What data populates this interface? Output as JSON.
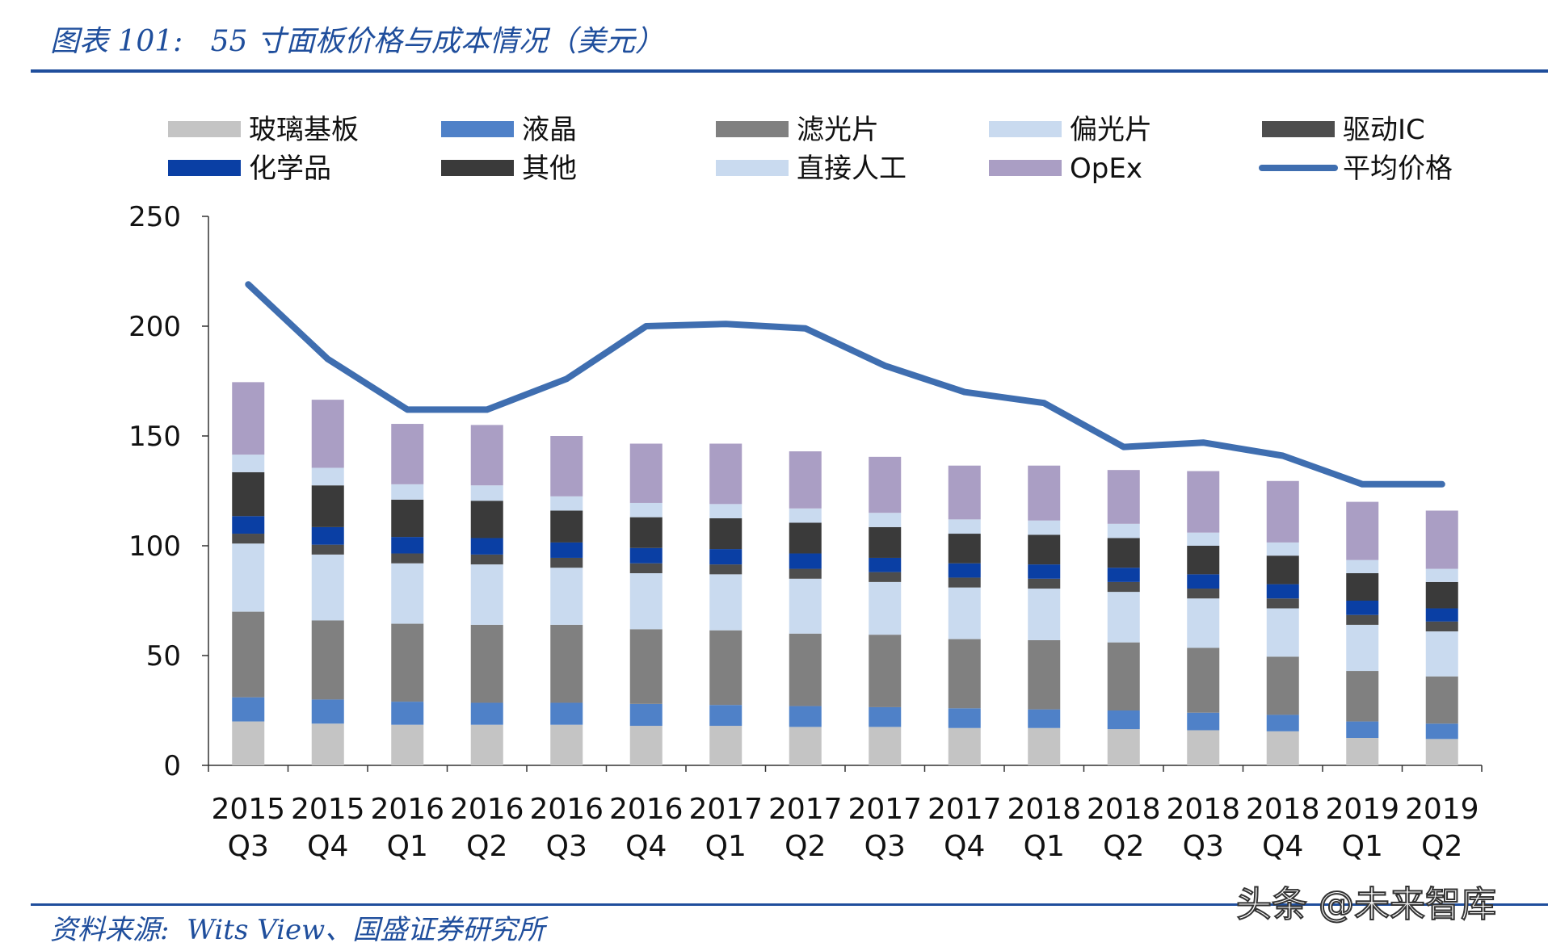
{
  "header": {
    "title": "图表 101:   55 寸面板价格与成本情况（美元）"
  },
  "footer": {
    "source": "资料来源:  Wits View、国盛证券研究所",
    "watermark": "头条 @未来智库"
  },
  "colors": {
    "glass": "#c4c4c4",
    "lc": "#4f81c8",
    "filter": "#808080",
    "polarizer": "#c9daef",
    "driver_ic": "#4d4d4d",
    "chemical": "#0a3fa4",
    "other": "#3a3a3a",
    "labor": "#c9daef",
    "opex": "#aa9ec4",
    "avg_price": "#3f6eb0"
  },
  "chart_data": {
    "type": "stacked_bar_with_line",
    "title": "55 寸面板价格与成本情况（美元）",
    "categories": [
      "2015 Q3",
      "2015 Q4",
      "2016 Q1",
      "2016 Q2",
      "2016 Q3",
      "2016 Q4",
      "2017 Q1",
      "2017 Q2",
      "2017 Q3",
      "2017 Q4",
      "2018 Q1",
      "2018 Q2",
      "2018 Q3",
      "2018 Q4",
      "2019 Q1",
      "2019 Q2"
    ],
    "ylim": [
      0,
      250
    ],
    "yticks": [
      "0",
      "50",
      "100",
      "150",
      "200",
      "250"
    ],
    "legend": [
      {
        "key": "glass",
        "name": "玻璃基板"
      },
      {
        "key": "lc",
        "name": "液晶"
      },
      {
        "key": "filter",
        "name": "滤光片"
      },
      {
        "key": "polarizer",
        "name": "偏光片"
      },
      {
        "key": "driver_ic",
        "name": "驱动IC"
      },
      {
        "key": "chemical",
        "name": "化学品"
      },
      {
        "key": "other",
        "name": "其他"
      },
      {
        "key": "labor",
        "name": "直接人工"
      },
      {
        "key": "opex",
        "name": "OpEx"
      },
      {
        "key": "avg_price",
        "name": "平均价格",
        "kind": "line"
      }
    ],
    "series": [
      {
        "key": "glass",
        "name": "玻璃基板",
        "values": [
          20,
          19,
          18.5,
          18.5,
          18.5,
          18,
          18,
          17.5,
          17.5,
          17,
          17,
          16.5,
          16,
          15.5,
          12.5,
          12
        ]
      },
      {
        "key": "lc",
        "name": "液晶",
        "values": [
          11,
          11,
          10.5,
          10,
          10,
          10,
          9.5,
          9.5,
          9,
          9,
          8.5,
          8.5,
          8,
          7.5,
          7.5,
          7
        ]
      },
      {
        "key": "filter",
        "name": "滤光片",
        "values": [
          39,
          36,
          35.5,
          35.5,
          35.5,
          34,
          34,
          33,
          33,
          31.5,
          31.5,
          31,
          29.5,
          26.5,
          23,
          21.5
        ]
      },
      {
        "key": "polarizer",
        "name": "偏光片",
        "values": [
          31,
          30,
          27.5,
          27.5,
          26,
          25.5,
          25.5,
          25,
          24,
          23.5,
          23.5,
          23,
          22.5,
          22,
          21,
          20.5
        ]
      },
      {
        "key": "driver_ic",
        "name": "驱动IC",
        "values": [
          4.5,
          4.5,
          4.5,
          4.5,
          4.5,
          4.5,
          4.5,
          4.5,
          4.5,
          4.5,
          4.5,
          4.5,
          4.5,
          4.5,
          4.5,
          4.5
        ]
      },
      {
        "key": "chemical",
        "name": "化学品",
        "values": [
          8,
          8,
          7.5,
          7.5,
          7,
          7,
          7,
          7,
          6.5,
          6.5,
          6.5,
          6.5,
          6.5,
          6.5,
          6.5,
          6
        ]
      },
      {
        "key": "other",
        "name": "其他",
        "values": [
          20,
          19,
          17,
          17,
          14.5,
          14,
          14,
          14,
          14,
          13.5,
          13.5,
          13.5,
          13,
          13,
          12.5,
          12
        ]
      },
      {
        "key": "labor",
        "name": "直接人工",
        "values": [
          8,
          8,
          7,
          7,
          6.5,
          6.5,
          6.5,
          6.5,
          6.5,
          6.5,
          6.5,
          6.5,
          6,
          6,
          6,
          6
        ]
      },
      {
        "key": "opex",
        "name": "OpEx",
        "values": [
          33,
          31,
          27.5,
          27.5,
          27.5,
          27,
          27.5,
          26,
          25.5,
          24.5,
          25,
          24.5,
          28,
          28,
          26.5,
          26.5
        ]
      }
    ],
    "line": {
      "key": "avg_price",
      "name": "平均价格",
      "values": [
        219,
        185,
        162,
        162,
        176,
        200,
        201,
        199,
        182,
        170,
        165,
        145,
        147,
        141,
        128,
        128
      ]
    }
  }
}
